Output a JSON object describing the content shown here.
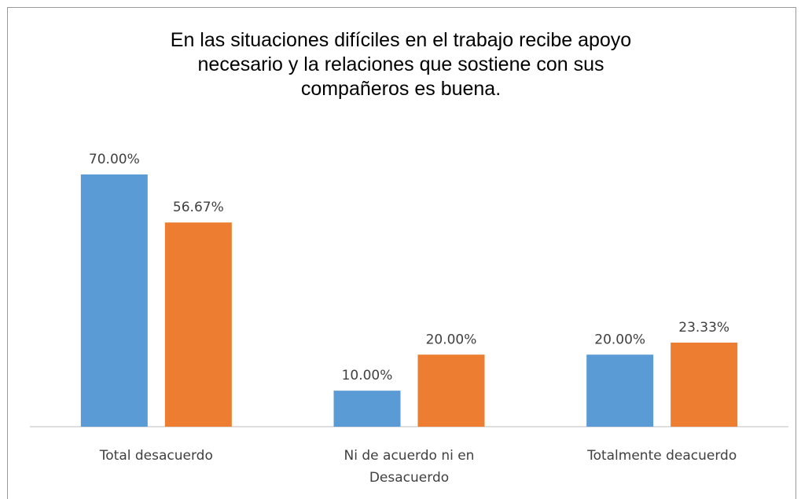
{
  "chart_data": {
    "type": "bar",
    "title": "En las situaciones difíciles en el trabajo recibe apoyo necesario y la relaciones que sostiene con sus compañeros es buena.",
    "categories": [
      "Total desacuerdo",
      "Ni de acuerdo ni en Desacuerdo",
      "Totalmente deacuerdo"
    ],
    "series": [
      {
        "color": "#5b9bd5",
        "values": [
          70,
          10,
          20
        ],
        "value_labels": [
          "70.00%",
          "10.00%",
          "20.00%"
        ]
      },
      {
        "color": "#ed7d31",
        "values": [
          56.67,
          20,
          23.33
        ],
        "value_labels": [
          "56.67%",
          "20.00%",
          "23.33%"
        ]
      }
    ]
  }
}
